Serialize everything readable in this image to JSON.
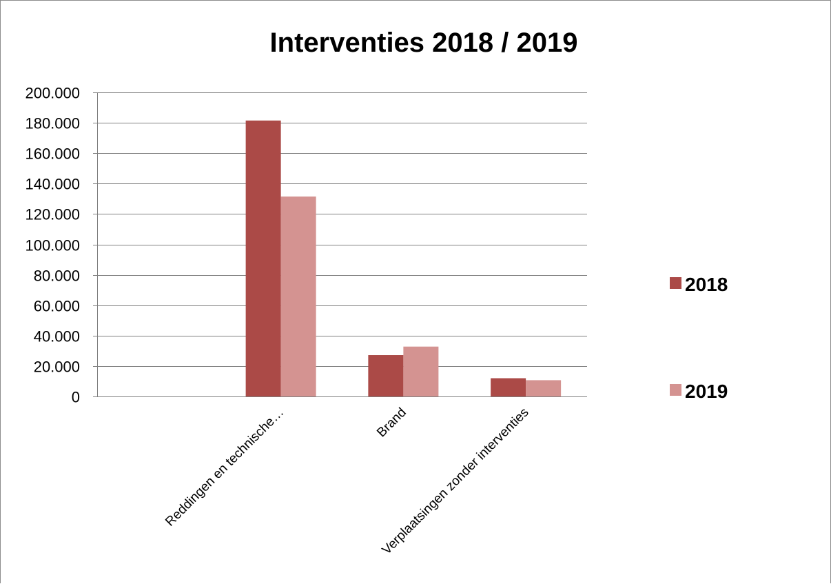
{
  "chart_data": {
    "type": "bar",
    "title": "Interventies 2018 / 2019",
    "xlabel": "",
    "ylabel": "",
    "categories": [
      "",
      "Reddingen en technische…",
      "Brand",
      "Verplaatsingen zonder interventies"
    ],
    "series": [
      {
        "name": "2018",
        "color": "#ab4a47",
        "values": [
          0,
          181500,
          27200,
          12000
        ]
      },
      {
        "name": "2019",
        "color": "#d49391",
        "values": [
          0,
          131500,
          32800,
          10700
        ]
      }
    ],
    "ylim": [
      0,
      200000
    ],
    "yticks": [
      0,
      20000,
      40000,
      60000,
      80000,
      100000,
      120000,
      140000,
      160000,
      180000,
      200000
    ],
    "ytick_labels": [
      "0",
      "20.000",
      "40.000",
      "60.000",
      "80.000",
      "100.000",
      "120.000",
      "140.000",
      "160.000",
      "180.000",
      "200.000"
    ],
    "grid": true,
    "legend_position": "right"
  }
}
